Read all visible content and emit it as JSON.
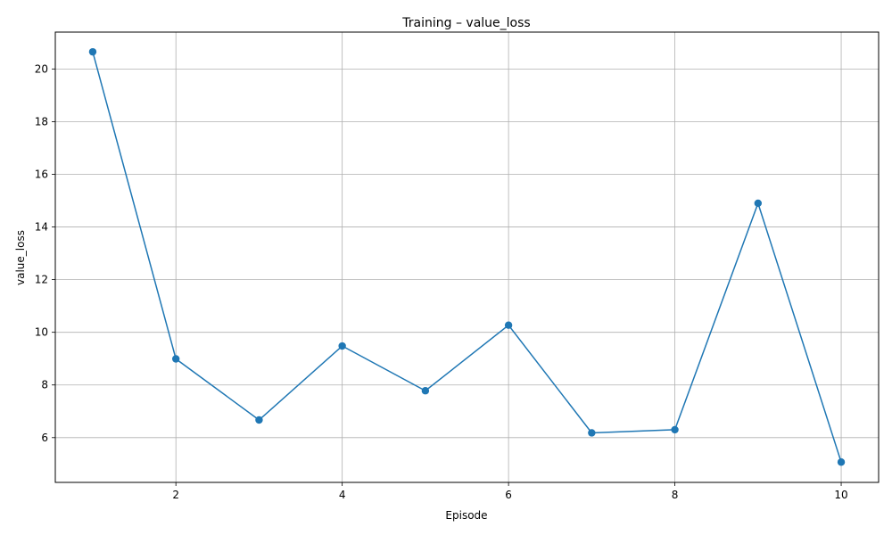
{
  "chart_data": {
    "type": "line",
    "title": "Training – value_loss",
    "xlabel": "Episode",
    "ylabel": "value_loss",
    "x": [
      1,
      2,
      3,
      4,
      5,
      6,
      7,
      8,
      9,
      10
    ],
    "series": [
      {
        "values": [
          20.65,
          8.99,
          6.67,
          9.48,
          7.78,
          10.27,
          6.18,
          6.3,
          14.9,
          5.07
        ]
      }
    ],
    "xticks": [
      2,
      4,
      6,
      8,
      10
    ],
    "yticks": [
      6,
      8,
      10,
      12,
      14,
      16,
      18,
      20
    ],
    "xlim": [
      0.55,
      10.45
    ],
    "ylim": [
      4.3,
      21.4
    ],
    "grid": true,
    "legend": "none",
    "marker": "circle",
    "color": "#1f77b4"
  }
}
